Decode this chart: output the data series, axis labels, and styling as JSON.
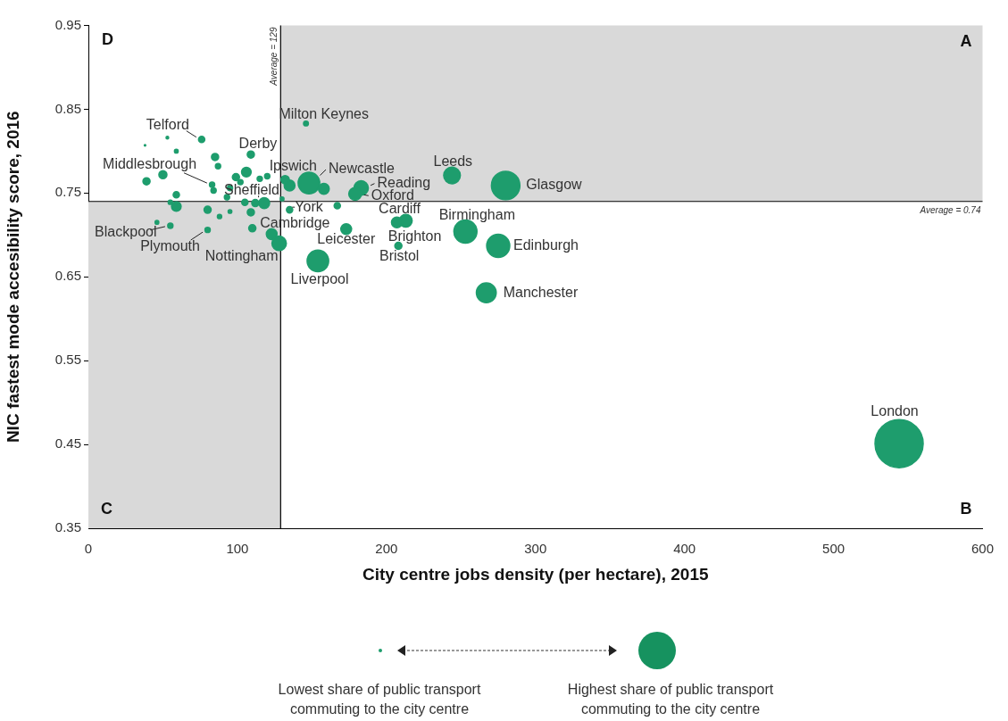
{
  "chart_data": {
    "type": "bubble",
    "xlabel": "City centre jobs density (per hectare), 2015",
    "ylabel": "NIC fastest mode accesibility score, 2016",
    "xlim": [
      0,
      600
    ],
    "xticks": [
      0,
      100,
      200,
      300,
      400,
      500,
      600
    ],
    "ylim": [
      0.35,
      0.95
    ],
    "yticks": [
      0.35,
      0.45,
      0.55,
      0.65,
      0.75,
      0.85,
      0.95
    ],
    "marker": "circle",
    "series": [
      {
        "color": "#1e9d6d",
        "x": [
          544,
          280,
          275,
          253,
          267,
          244,
          154,
          146,
          148,
          183,
          179,
          213,
          207,
          208,
          173,
          135,
          123,
          128,
          135,
          118,
          109,
          76,
          83,
          55,
          80,
          53,
          38,
          59,
          85,
          87,
          50,
          39,
          84,
          59,
          59,
          55,
          106,
          99,
          102,
          95,
          93,
          115,
          120,
          105,
          112,
          109,
          80,
          88,
          95,
          46,
          110,
          130,
          167,
          158,
          132
        ],
        "values": [
          0.451,
          0.759,
          0.687,
          0.704,
          0.631,
          0.771,
          0.669,
          0.833,
          0.762,
          0.756,
          0.749,
          0.717,
          0.715,
          0.687,
          0.707,
          0.73,
          0.701,
          0.69,
          0.759,
          0.738,
          0.796,
          0.814,
          0.76,
          0.711,
          0.706,
          0.816,
          0.807,
          0.8,
          0.793,
          0.782,
          0.772,
          0.764,
          0.753,
          0.748,
          0.734,
          0.739,
          0.775,
          0.769,
          0.763,
          0.756,
          0.745,
          0.767,
          0.77,
          0.739,
          0.738,
          0.727,
          0.73,
          0.722,
          0.728,
          0.715,
          0.708,
          0.743,
          0.735,
          0.755,
          0.766
        ],
        "sizes": [
          1,
          0.35,
          0.23,
          0.23,
          0.17,
          0.12,
          0.2,
          0.01,
          0.2,
          0.09,
          0.07,
          0.07,
          0.05,
          0.022,
          0.05,
          0.017,
          0.05,
          0.09,
          0.05,
          0.05,
          0.022,
          0.017,
          0.012,
          0.012,
          0.012,
          0.003,
          0.001,
          0.006,
          0.022,
          0.012,
          0.028,
          0.022,
          0.012,
          0.017,
          0.04,
          0.008,
          0.04,
          0.022,
          0.012,
          0.012,
          0.012,
          0.012,
          0.012,
          0.017,
          0.022,
          0.022,
          0.022,
          0.008,
          0.006,
          0.006,
          0.022,
          0.006,
          0.017,
          0.05,
          0.03
        ]
      }
    ],
    "ref_lines": [
      {
        "axis": "x",
        "value": 129,
        "label": "Average = 129"
      },
      {
        "axis": "y",
        "value": 0.74,
        "label": "Average = 0.74"
      }
    ],
    "annotations": [
      "D",
      "A",
      "C",
      "B",
      "Lowest share of public transport commuting to the city centre",
      "Highest share of public transport commuting to the city centre",
      {
        "text": "London",
        "x": 544,
        "y": 0.451
      },
      {
        "text": "Glasgow",
        "x": 280,
        "y": 0.759
      },
      {
        "text": "Edinburgh",
        "x": 275,
        "y": 0.687
      },
      {
        "text": "Birmingham",
        "x": 253,
        "y": 0.704
      },
      {
        "text": "Manchester",
        "x": 267,
        "y": 0.631
      },
      {
        "text": "Leeds",
        "x": 244,
        "y": 0.771
      },
      {
        "text": "Liverpool",
        "x": 154,
        "y": 0.669
      },
      {
        "text": "Milton Keynes",
        "x": 146,
        "y": 0.833
      },
      {
        "text": "Newcastle",
        "x": 148,
        "y": 0.762
      },
      {
        "text": "Reading",
        "x": 183,
        "y": 0.756
      },
      {
        "text": "Oxford",
        "x": 179,
        "y": 0.749
      },
      {
        "text": "Cardiff",
        "x": 213,
        "y": 0.717
      },
      {
        "text": "Brighton",
        "x": 207,
        "y": 0.715
      },
      {
        "text": "Bristol",
        "x": 208,
        "y": 0.687
      },
      {
        "text": "Leicester",
        "x": 173,
        "y": 0.707
      },
      {
        "text": "York",
        "x": 135,
        "y": 0.73
      },
      {
        "text": "Cambridge",
        "x": 123,
        "y": 0.701
      },
      {
        "text": "Nottingham",
        "x": 128,
        "y": 0.69
      },
      {
        "text": "Ipswich",
        "x": 135,
        "y": 0.759
      },
      {
        "text": "Sheffield",
        "x": 118,
        "y": 0.738
      },
      {
        "text": "Derby",
        "x": 109,
        "y": 0.796
      },
      {
        "text": "Telford",
        "x": 76,
        "y": 0.814
      },
      {
        "text": "Middlesbrough",
        "x": 83,
        "y": 0.76
      },
      {
        "text": "Blackpool",
        "x": 55,
        "y": 0.711
      },
      {
        "text": "Plymouth",
        "x": 80,
        "y": 0.706
      }
    ]
  }
}
